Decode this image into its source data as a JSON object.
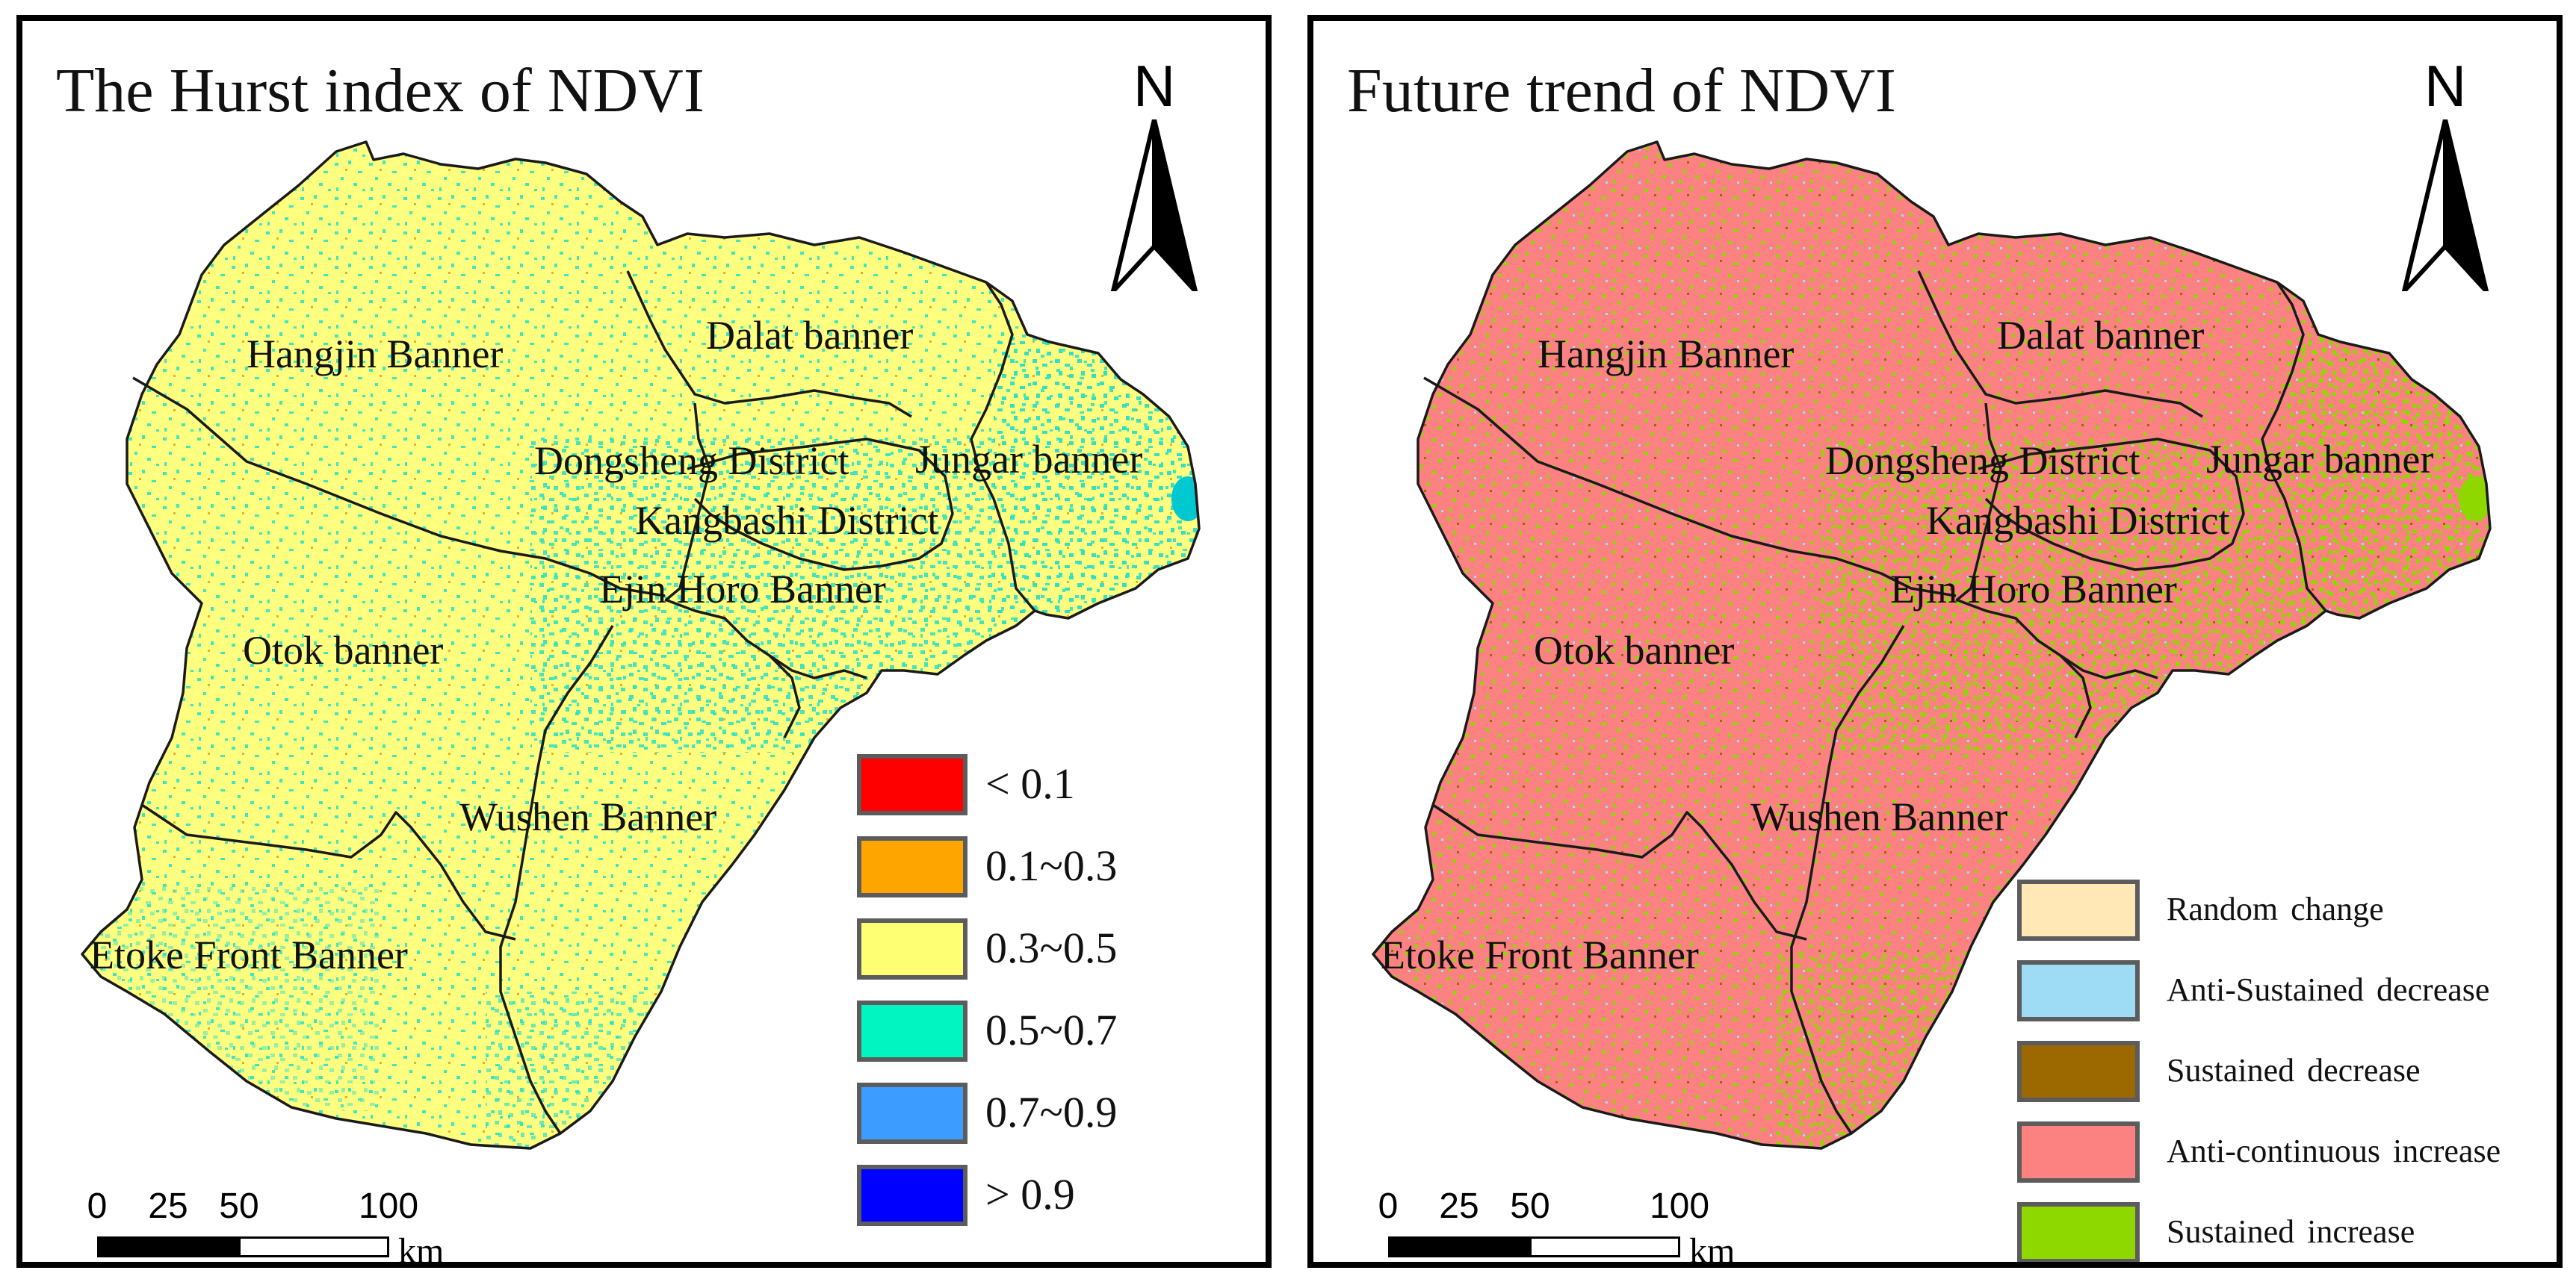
{
  "colors": {
    "hurst_base": "#ffff80",
    "hurst_speckle": "#3de8c0",
    "trend_base": "#fc8282",
    "trend_speckle": "#8ed800",
    "boundary": "#1a1a1a"
  },
  "icons": {
    "north_arrow": "north-arrow-icon"
  },
  "panels": [
    {
      "title": "The Hurst index of NDVI",
      "north_letter": "N",
      "regions": [
        "Hangjin Banner",
        "Dalat banner",
        "Dongsheng District",
        "Jungar banner",
        "Kangbashi District",
        "Ejin Horo Banner",
        "Otok banner",
        "Wushen Banner",
        "Etoke Front Banner"
      ],
      "scale": {
        "ticks": [
          "0",
          "25",
          "50",
          "100"
        ],
        "unit": "km"
      },
      "legend": [
        {
          "label": "< 0.1",
          "color": "#ff0000"
        },
        {
          "label": "0.1~0.3",
          "color": "#ffa500"
        },
        {
          "label": "0.3~0.5",
          "color": "#ffff73"
        },
        {
          "label": "0.5~0.7",
          "color": "#00f5c0"
        },
        {
          "label": "0.7~0.9",
          "color": "#3d9cff"
        },
        {
          "label": "> 0.9",
          "color": "#0000ff"
        }
      ]
    },
    {
      "title": "Future trend of NDVI",
      "north_letter": "N",
      "regions": [
        "Hangjin Banner",
        "Dalat banner",
        "Dongsheng District",
        "Jungar banner",
        "Kangbashi District",
        "Ejin Horo Banner",
        "Otok banner",
        "Wushen Banner",
        "Etoke Front Banner"
      ],
      "scale": {
        "ticks": [
          "0",
          "25",
          "50",
          "100"
        ],
        "unit": "km"
      },
      "legend": [
        {
          "label": "Random change",
          "color": "#ffe8b6"
        },
        {
          "label": "Anti-Sustained decrease",
          "color": "#9ddcf4"
        },
        {
          "label": "Sustained decrease",
          "color": "#9c6800"
        },
        {
          "label": "Anti-continuous increase",
          "color": "#fc8282"
        },
        {
          "label": "Sustained increase",
          "color": "#8ed800"
        }
      ]
    }
  ]
}
